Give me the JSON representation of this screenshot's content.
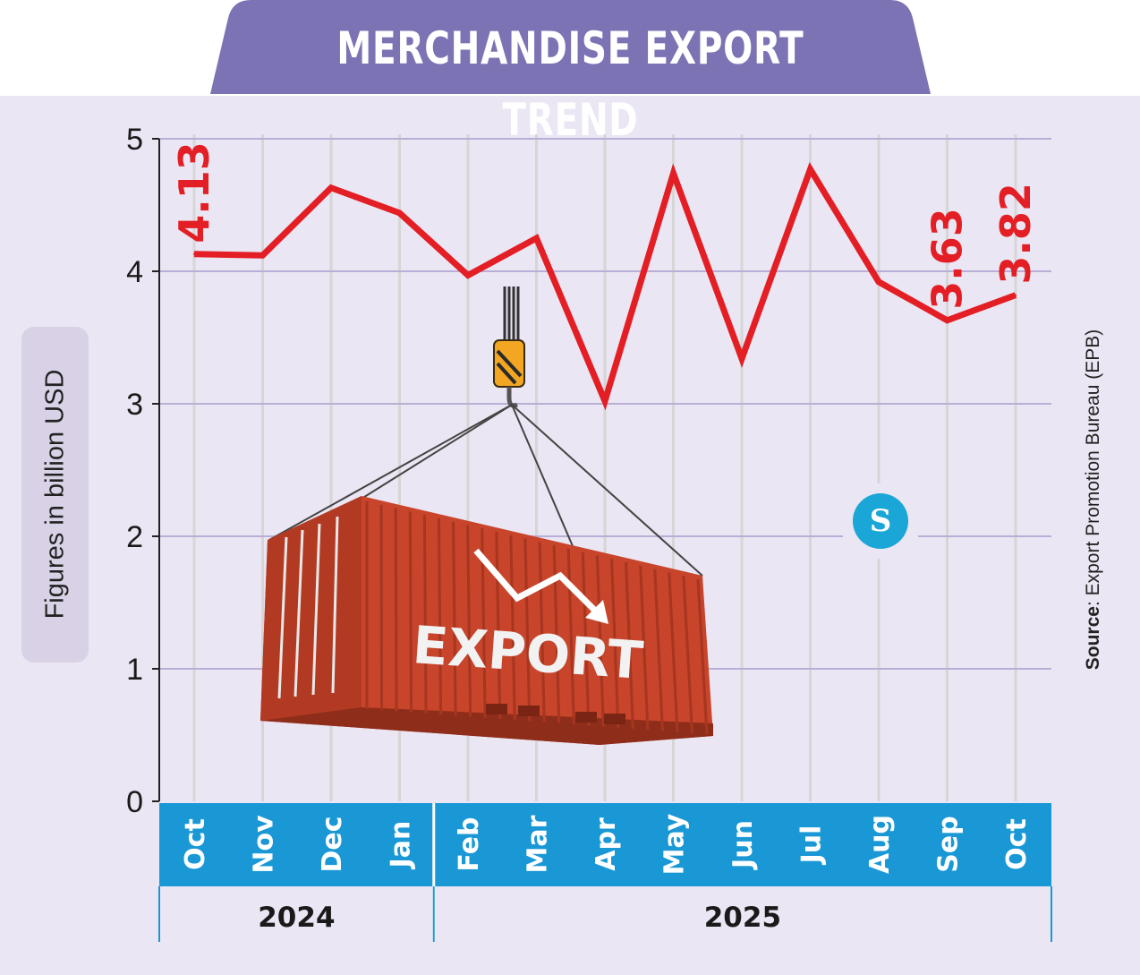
{
  "title": "MERCHANDISE EXPORT TREND",
  "colors": {
    "title_tab": "#7b73b4",
    "panel_bg": "#ebe6f3",
    "line": "#e31e24",
    "month_band": "#1a98d5",
    "gridline": "#b9aed6",
    "month_gridline": "#d6d6d6",
    "container": "#c8442a"
  },
  "source": {
    "prefix": "Source",
    "text": ": Export Promotion Bureau (EPB)"
  },
  "logo": {
    "icon": "publisher-logo-icon",
    "text": "S"
  },
  "illustration": {
    "icon": "shipping-container-crane-icon",
    "label": "EXPORT"
  },
  "chart_data": {
    "type": "line",
    "ylabel": "Figures in billion USD",
    "ylim": [
      0,
      5
    ],
    "yticks": [
      "0",
      "1",
      "2",
      "3",
      "4",
      "5"
    ],
    "grid": true,
    "categories": [
      "Oct",
      "Nov",
      "Dec",
      "Jan",
      "Feb",
      "Mar",
      "Apr",
      "May",
      "Jun",
      "Jul",
      "Aug",
      "Sep",
      "Oct"
    ],
    "years": [
      {
        "label": "2024",
        "span": [
          0,
          3
        ]
      },
      {
        "label": "2025",
        "span": [
          4,
          12
        ]
      }
    ],
    "series": [
      {
        "values": [
          4.13,
          4.12,
          4.63,
          4.44,
          3.97,
          4.25,
          3.02,
          4.74,
          3.34,
          4.77,
          3.92,
          3.63,
          3.82
        ]
      }
    ],
    "data_labels": [
      {
        "index": 0,
        "text": "4.13"
      },
      {
        "index": 11,
        "text": "3.63"
      },
      {
        "index": 12,
        "text": "3.82"
      }
    ]
  }
}
